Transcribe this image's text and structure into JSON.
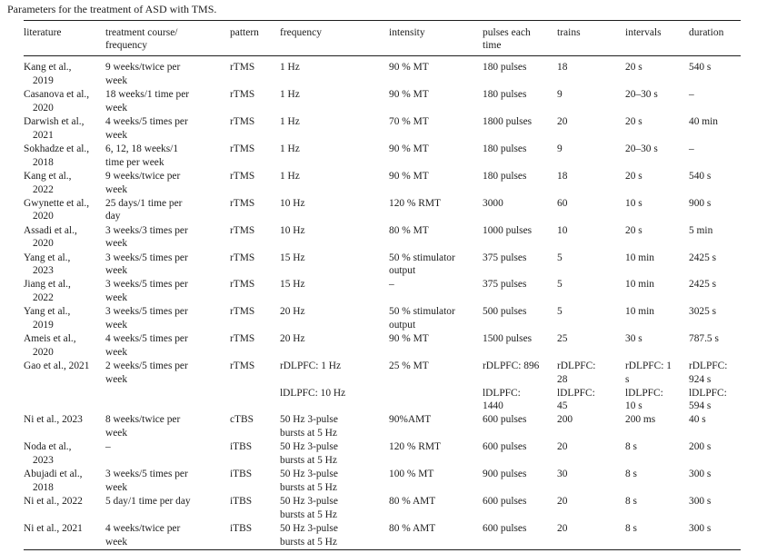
{
  "page": {
    "title": "Parameters for the treatment of ASD with TMS."
  },
  "table": {
    "columns": [
      {
        "key": "literature",
        "label": "literature"
      },
      {
        "key": "treatment-course-frequency",
        "label": "treatment course/\nfrequency"
      },
      {
        "key": "pattern",
        "label": "pattern"
      },
      {
        "key": "frequency",
        "label": "frequency"
      },
      {
        "key": "intensity",
        "label": "intensity"
      },
      {
        "key": "pulses-each-time",
        "label": "pulses each\ntime"
      },
      {
        "key": "trains",
        "label": "trains"
      },
      {
        "key": "intervals",
        "label": "intervals"
      },
      {
        "key": "duration",
        "label": "duration"
      }
    ],
    "rows": [
      {
        "cells": [
          [
            "Kang et al.,\n2019"
          ],
          [
            "9 weeks/twice per\nweek"
          ],
          [
            "rTMS"
          ],
          [
            "1 Hz"
          ],
          [
            "90 % MT"
          ],
          [
            "180 pulses"
          ],
          [
            "18"
          ],
          [
            "20 s"
          ],
          [
            "540 s"
          ]
        ]
      },
      {
        "cells": [
          [
            "Casanova et al.,\n2020"
          ],
          [
            "18 weeks/1 time per\nweek"
          ],
          [
            "rTMS"
          ],
          [
            "1 Hz"
          ],
          [
            "90 % MT"
          ],
          [
            "180 pulses"
          ],
          [
            "9"
          ],
          [
            "20–30 s"
          ],
          [
            "–"
          ]
        ]
      },
      {
        "cells": [
          [
            "Darwish et al.,\n2021"
          ],
          [
            "4 weeks/5 times per\nweek"
          ],
          [
            "rTMS"
          ],
          [
            "1 Hz"
          ],
          [
            "70 % MT"
          ],
          [
            "1800 pulses"
          ],
          [
            "20"
          ],
          [
            "20 s"
          ],
          [
            "40 min"
          ]
        ]
      },
      {
        "cells": [
          [
            "Sokhadze et al.,\n2018"
          ],
          [
            "6, 12, 18 weeks/1\ntime per week"
          ],
          [
            "rTMS"
          ],
          [
            "1 Hz"
          ],
          [
            "90 % MT"
          ],
          [
            "180 pulses"
          ],
          [
            "9"
          ],
          [
            "20–30 s"
          ],
          [
            "–"
          ]
        ]
      },
      {
        "cells": [
          [
            "Kang et al.,\n2022"
          ],
          [
            "9 weeks/twice per\nweek"
          ],
          [
            "rTMS"
          ],
          [
            "1 Hz"
          ],
          [
            "90 % MT"
          ],
          [
            "180 pulses"
          ],
          [
            "18"
          ],
          [
            "20 s"
          ],
          [
            "540 s"
          ]
        ]
      },
      {
        "cells": [
          [
            "Gwynette et al.,\n2020"
          ],
          [
            "25 days/1 time per\nday"
          ],
          [
            "rTMS"
          ],
          [
            "10 Hz"
          ],
          [
            "120 % RMT"
          ],
          [
            "3000"
          ],
          [
            "60"
          ],
          [
            "10 s"
          ],
          [
            "900 s"
          ]
        ]
      },
      {
        "cells": [
          [
            "Assadi et al.,\n2020"
          ],
          [
            "3 weeks/3 times per\nweek"
          ],
          [
            "rTMS"
          ],
          [
            "10 Hz"
          ],
          [
            "80 % MT"
          ],
          [
            "1000 pulses"
          ],
          [
            "10"
          ],
          [
            "20 s"
          ],
          [
            "5 min"
          ]
        ]
      },
      {
        "cells": [
          [
            "Yang et al.,\n2023"
          ],
          [
            "3 weeks/5 times per\nweek"
          ],
          [
            "rTMS"
          ],
          [
            "15 Hz"
          ],
          [
            "50 % stimulator\noutput"
          ],
          [
            "375 pulses"
          ],
          [
            "5"
          ],
          [
            "10 min"
          ],
          [
            "2425 s"
          ]
        ]
      },
      {
        "cells": [
          [
            "Jiang et al.,\n2022"
          ],
          [
            "3 weeks/5 times per\nweek"
          ],
          [
            "rTMS"
          ],
          [
            "15 Hz"
          ],
          [
            "–"
          ],
          [
            "375 pulses"
          ],
          [
            "5"
          ],
          [
            "10 min"
          ],
          [
            "2425 s"
          ]
        ]
      },
      {
        "cells": [
          [
            "Yang et al.,\n2019"
          ],
          [
            "3 weeks/5 times per\nweek"
          ],
          [
            "rTMS"
          ],
          [
            "20 Hz"
          ],
          [
            "50 % stimulator\noutput"
          ],
          [
            "500 pulses"
          ],
          [
            "5"
          ],
          [
            "10 min"
          ],
          [
            "3025 s"
          ]
        ]
      },
      {
        "cells": [
          [
            "Ameis et al.,\n2020"
          ],
          [
            "4 weeks/5 times per\nweek"
          ],
          [
            "rTMS"
          ],
          [
            "20 Hz"
          ],
          [
            "90 % MT"
          ],
          [
            "1500 pulses"
          ],
          [
            "25"
          ],
          [
            "30 s"
          ],
          [
            "787.5 s"
          ]
        ]
      },
      {
        "cells": [
          [
            "Gao et al., 2021"
          ],
          [
            "2 weeks/5 times per\nweek"
          ],
          [
            "rTMS"
          ],
          [
            "rDLPFC: 1 Hz",
            "lDLPFC: 10 Hz"
          ],
          [
            "25 % MT"
          ],
          [
            "rDLPFC: 896",
            "lDLPFC:\n1440"
          ],
          [
            "rDLPFC:\n28",
            "lDLPFC:\n45"
          ],
          [
            "rDLPFC: 1\ns",
            "lDLPFC:\n10 s"
          ],
          [
            "rDLPFC:\n924 s",
            "lDLPFC:\n594 s"
          ]
        ]
      },
      {
        "cells": [
          [
            "Ni et al., 2023"
          ],
          [
            "8 weeks/twice per\nweek"
          ],
          [
            "cTBS"
          ],
          [
            "50 Hz 3-pulse\nbursts at 5 Hz"
          ],
          [
            "90%AMT"
          ],
          [
            "600 pulses"
          ],
          [
            "200"
          ],
          [
            "200 ms"
          ],
          [
            "40 s"
          ]
        ]
      },
      {
        "cells": [
          [
            "Noda et al.,\n2023"
          ],
          [
            "–"
          ],
          [
            "iTBS"
          ],
          [
            "50 Hz 3-pulse\nbursts at 5 Hz"
          ],
          [
            "120 % RMT"
          ],
          [
            "600 pulses"
          ],
          [
            "20"
          ],
          [
            "8 s"
          ],
          [
            "200 s"
          ]
        ]
      },
      {
        "cells": [
          [
            "Abujadi et al.,\n2018"
          ],
          [
            "3 weeks/5 times per\nweek"
          ],
          [
            "iTBS"
          ],
          [
            "50 Hz 3-pulse\nbursts at 5 Hz"
          ],
          [
            "100 % MT"
          ],
          [
            "900 pulses"
          ],
          [
            "30"
          ],
          [
            "8 s"
          ],
          [
            "300 s"
          ]
        ]
      },
      {
        "cells": [
          [
            "Ni et al., 2022"
          ],
          [
            "5 day/1 time per day"
          ],
          [
            "iTBS"
          ],
          [
            "50 Hz 3-pulse\nbursts at 5 Hz"
          ],
          [
            "80 % AMT"
          ],
          [
            "600 pulses"
          ],
          [
            "20"
          ],
          [
            "8 s"
          ],
          [
            "300 s"
          ]
        ]
      },
      {
        "cells": [
          [
            "Ni et al., 2021"
          ],
          [
            "4 weeks/twice per\nweek"
          ],
          [
            "iTBS"
          ],
          [
            "50 Hz 3-pulse\nbursts at 5 Hz"
          ],
          [
            "80 % AMT"
          ],
          [
            "600 pulses"
          ],
          [
            "20"
          ],
          [
            "8 s"
          ],
          [
            "300 s"
          ]
        ]
      }
    ]
  }
}
